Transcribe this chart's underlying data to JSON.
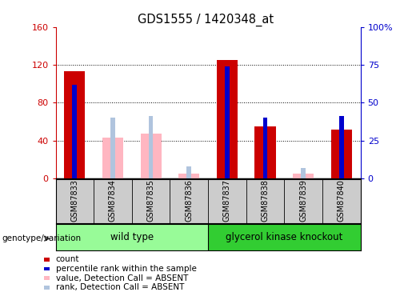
{
  "title": "GDS1555 / 1420348_at",
  "samples": [
    "GSM87833",
    "GSM87834",
    "GSM87835",
    "GSM87836",
    "GSM87837",
    "GSM87838",
    "GSM87839",
    "GSM87840"
  ],
  "count_values": [
    113,
    0,
    0,
    0,
    125,
    55,
    0,
    52
  ],
  "rank_values": [
    62,
    0,
    0,
    0,
    74,
    40,
    0,
    41
  ],
  "absent_count_values": [
    0,
    43,
    47,
    5,
    0,
    0,
    5,
    0
  ],
  "absent_rank_values": [
    0,
    40,
    41,
    8,
    0,
    0,
    7,
    0
  ],
  "ylim_left": [
    0,
    160
  ],
  "ylim_right": [
    0,
    100
  ],
  "yticks_left": [
    0,
    40,
    80,
    120,
    160
  ],
  "yticks_right": [
    0,
    25,
    50,
    75,
    100
  ],
  "ytick_labels_left": [
    "0",
    "40",
    "80",
    "120",
    "160"
  ],
  "ytick_labels_right": [
    "0",
    "25",
    "50",
    "75",
    "100%"
  ],
  "count_color": "#CC0000",
  "rank_color": "#0000CC",
  "absent_count_color": "#FFB6C1",
  "absent_rank_color": "#B0C4DE",
  "bg_color": "#ffffff",
  "tick_bg": "#CCCCCC",
  "wt_color": "#98FB98",
  "gk_color": "#32CD32",
  "legend_entries": [
    "count",
    "percentile rank within the sample",
    "value, Detection Call = ABSENT",
    "rank, Detection Call = ABSENT"
  ],
  "legend_colors": [
    "#CC0000",
    "#0000CC",
    "#FFB6C1",
    "#B0C4DE"
  ],
  "genotype_label": "genotype/variation"
}
